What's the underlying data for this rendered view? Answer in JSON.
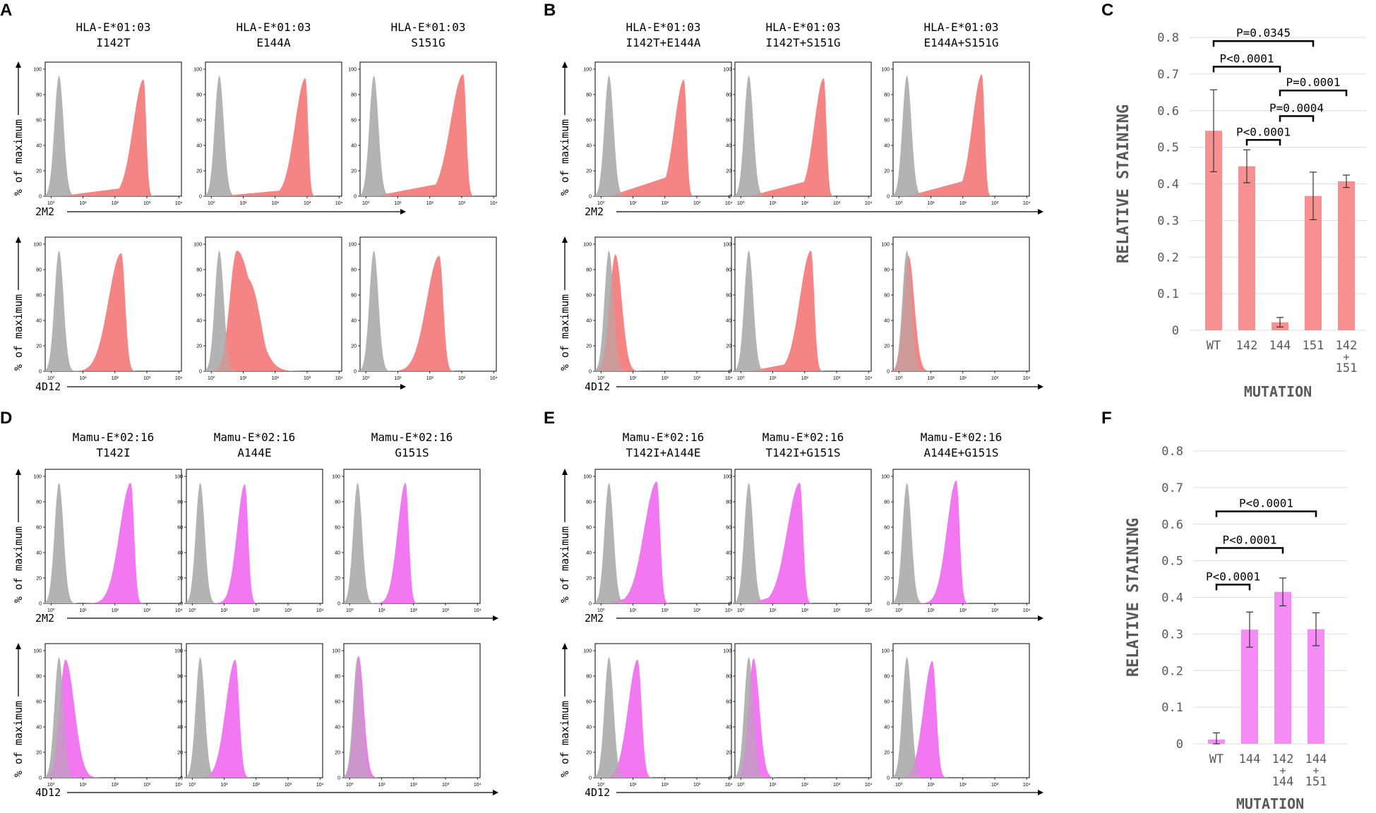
{
  "figure": {
    "colors": {
      "hla": "#f47a7a",
      "mamu": "#f06cf0",
      "control": "#b3b3b3",
      "hla_bar": "#f79191",
      "mamu_bar": "#f58cf5"
    },
    "common": {
      "ylabel": "% of maximum",
      "ytick_labels": [
        "0",
        "20",
        "40",
        "60",
        "80",
        "100"
      ],
      "xtick_labels": [
        "10⁰",
        "10¹",
        "10²",
        "10³",
        "10⁴"
      ]
    },
    "panels": [
      {
        "letter": "A",
        "species": "HLA-E*01:03",
        "color_key": "hla",
        "mutants": [
          "I142T",
          "E144A",
          "S151G"
        ],
        "rows": [
          {
            "antibody": "2M2",
            "series": [
              {
                "shape": "skew",
                "mode": 2.9,
                "sd_left": 0.33,
                "sd_right": 0.08,
                "tail": 0.07,
                "peak": 92
              },
              {
                "shape": "skew",
                "mode": 2.95,
                "sd_left": 0.33,
                "sd_right": 0.08,
                "tail": 0.05,
                "peak": 93
              },
              {
                "shape": "skew",
                "mode": 3.05,
                "sd_left": 0.4,
                "sd_right": 0.09,
                "tail": 0.1,
                "peak": 96
              }
            ]
          },
          {
            "antibody": "4D12",
            "series": [
              {
                "shape": "skew",
                "mode": 2.2,
                "sd_left": 0.4,
                "sd_right": 0.12,
                "tail": 0.0,
                "peak": 93
              },
              {
                "shape": "broad",
                "mode": 0.8,
                "sd_left": 0.22,
                "sd_right": 0.5,
                "tail": 0.0,
                "peak": 95
              },
              {
                "shape": "skew",
                "mode": 2.3,
                "sd_left": 0.4,
                "sd_right": 0.12,
                "tail": 0.0,
                "peak": 91
              }
            ]
          }
        ]
      },
      {
        "letter": "B",
        "species": "HLA-E*01:03",
        "color_key": "hla",
        "mutants": [
          "I142T+E144A",
          "I142T+S151G",
          "E144A+S151G"
        ],
        "rows": [
          {
            "antibody": "2M2",
            "series": [
              {
                "shape": "skew",
                "mode": 2.6,
                "sd_left": 0.3,
                "sd_right": 0.08,
                "tail": 0.18,
                "peak": 92
              },
              {
                "shape": "skew",
                "mode": 2.6,
                "sd_left": 0.3,
                "sd_right": 0.08,
                "tail": 0.14,
                "peak": 93
              },
              {
                "shape": "skew",
                "mode": 2.6,
                "sd_left": 0.3,
                "sd_right": 0.08,
                "tail": 0.14,
                "peak": 96
              }
            ]
          },
          {
            "antibody": "4D12",
            "series": [
              {
                "shape": "gauss",
                "mode": 0.45,
                "sd_left": 0.18,
                "sd_right": 0.2,
                "tail": 0.0,
                "peak": 92
              },
              {
                "shape": "skew",
                "mode": 2.2,
                "sd_left": 0.35,
                "sd_right": 0.1,
                "tail": 0.1,
                "peak": 95
              },
              {
                "shape": "gauss",
                "mode": 0.3,
                "sd_left": 0.16,
                "sd_right": 0.18,
                "tail": 0.0,
                "peak": 91
              }
            ]
          }
        ]
      },
      {
        "letter": "D",
        "species": "Mamu-E*02:16",
        "color_key": "mamu",
        "mutants": [
          "T142I",
          "A144E",
          "G151S"
        ],
        "rows": [
          {
            "antibody": "2M2",
            "series": [
              {
                "shape": "skew",
                "mode": 2.5,
                "sd_left": 0.35,
                "sd_right": 0.1,
                "tail": 0.0,
                "peak": 95
              },
              {
                "shape": "skew",
                "mode": 1.65,
                "sd_left": 0.25,
                "sd_right": 0.1,
                "tail": 0.0,
                "peak": 94
              },
              {
                "shape": "skew",
                "mode": 1.75,
                "sd_left": 0.25,
                "sd_right": 0.1,
                "tail": 0.0,
                "peak": 95
              }
            ]
          },
          {
            "antibody": "4D12",
            "series": [
              {
                "shape": "gauss",
                "mode": 0.45,
                "sd_left": 0.18,
                "sd_right": 0.28,
                "tail": 0.0,
                "peak": 93
              },
              {
                "shape": "skew",
                "mode": 1.35,
                "sd_left": 0.3,
                "sd_right": 0.12,
                "tail": 0.0,
                "peak": 93
              },
              {
                "shape": "gauss",
                "mode": 0.28,
                "sd_left": 0.14,
                "sd_right": 0.16,
                "tail": 0.0,
                "peak": 96
              }
            ]
          }
        ]
      },
      {
        "letter": "E",
        "species": "Mamu-E*02:16",
        "color_key": "mamu",
        "mutants": [
          "T142I+A144E",
          "T142I+G151S",
          "A144E+G151S"
        ],
        "rows": [
          {
            "antibody": "2M2",
            "series": [
              {
                "shape": "skew",
                "mode": 1.75,
                "sd_left": 0.4,
                "sd_right": 0.1,
                "tail": 0.16,
                "peak": 96
              },
              {
                "shape": "skew",
                "mode": 1.85,
                "sd_left": 0.4,
                "sd_right": 0.1,
                "tail": 0.15,
                "peak": 95
              },
              {
                "shape": "skew",
                "mode": 1.8,
                "sd_left": 0.3,
                "sd_right": 0.1,
                "tail": 0.0,
                "peak": 97
              }
            ]
          },
          {
            "antibody": "4D12",
            "series": [
              {
                "shape": "skew",
                "mode": 1.15,
                "sd_left": 0.3,
                "sd_right": 0.12,
                "tail": 0.05,
                "peak": 93
              },
              {
                "shape": "gauss",
                "mode": 0.4,
                "sd_left": 0.16,
                "sd_right": 0.18,
                "tail": 0.0,
                "peak": 94
              },
              {
                "shape": "skew",
                "mode": 1.05,
                "sd_left": 0.28,
                "sd_right": 0.12,
                "tail": 0.0,
                "peak": 92
              }
            ]
          }
        ]
      }
    ]
  },
  "chart_data": [
    {
      "panel": "C",
      "type": "bar",
      "color_key": "hla_bar",
      "ylabel": "RELATIVE STAINING",
      "xlabel": "MUTATION",
      "ylim": [
        0,
        0.8
      ],
      "yticks": [
        "0",
        "0.1",
        "0.2",
        "0.3",
        "0.4",
        "0.5",
        "0.6",
        "0.7",
        "0.8"
      ],
      "categories": [
        [
          "WT"
        ],
        [
          "142"
        ],
        [
          "144"
        ],
        [
          "151"
        ],
        [
          "142",
          "+",
          "151"
        ]
      ],
      "values": [
        0.545,
        0.448,
        0.022,
        0.367,
        0.407
      ],
      "errors": [
        0.112,
        0.045,
        0.013,
        0.065,
        0.017
      ],
      "comparisons": [
        {
          "from": 0,
          "to": 3,
          "level": 0.79,
          "label": "P=0.0345"
        },
        {
          "from": 0,
          "to": 2,
          "level": 0.72,
          "label": "P<0.0001"
        },
        {
          "from": 2,
          "to": 4,
          "level": 0.655,
          "label": "P=0.0001"
        },
        {
          "from": 2,
          "to": 3,
          "level": 0.585,
          "label": "P=0.0004"
        },
        {
          "from": 1,
          "to": 2,
          "level": 0.52,
          "label": "P<0.0001"
        }
      ]
    },
    {
      "panel": "F",
      "type": "bar",
      "color_key": "mamu_bar",
      "ylabel": "RELATIVE STAINING",
      "xlabel": "MUTATION",
      "ylim": [
        0,
        0.8
      ],
      "yticks": [
        "0",
        "0.1",
        "0.2",
        "0.3",
        "0.4",
        "0.5",
        "0.6",
        "0.7",
        "0.8"
      ],
      "categories": [
        [
          "WT"
        ],
        [
          "144"
        ],
        [
          "142",
          "+",
          "144"
        ],
        [
          "144",
          "+",
          "151"
        ]
      ],
      "values": [
        0.012,
        0.312,
        0.415,
        0.313
      ],
      "errors": [
        0.018,
        0.048,
        0.038,
        0.045
      ],
      "comparisons": [
        {
          "from": 0,
          "to": 3,
          "level": 0.635,
          "label": "P<0.0001"
        },
        {
          "from": 0,
          "to": 2,
          "level": 0.535,
          "label": "P<0.0001"
        },
        {
          "from": 0,
          "to": 1,
          "level": 0.435,
          "label": "P<0.0001"
        }
      ]
    }
  ]
}
